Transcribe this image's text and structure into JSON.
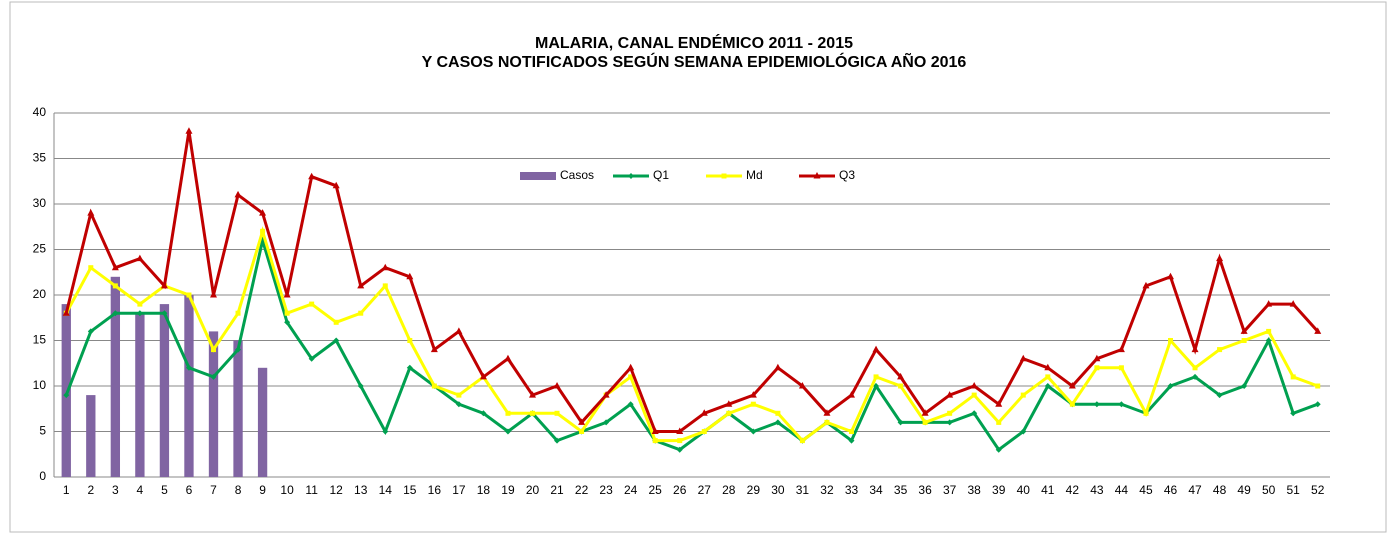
{
  "chart_data": {
    "type": "bar-line",
    "title": "MALARIA, CANAL ENDÉMICO 2011 - 2015",
    "subtitle": "Y CASOS NOTIFICADOS SEGÚN SEMANA EPIDEMIOLÓGICA AÑO 2016",
    "categories": [
      1,
      2,
      3,
      4,
      5,
      6,
      7,
      8,
      9,
      10,
      11,
      12,
      13,
      14,
      15,
      16,
      17,
      18,
      19,
      20,
      21,
      22,
      23,
      24,
      25,
      26,
      27,
      28,
      29,
      30,
      31,
      32,
      33,
      34,
      35,
      36,
      37,
      38,
      39,
      40,
      41,
      42,
      43,
      44,
      45,
      46,
      47,
      48,
      49,
      50,
      51,
      52
    ],
    "series": [
      {
        "name": "Casos",
        "type": "bar",
        "color": "#8064a2",
        "values": [
          19,
          9,
          22,
          18,
          19,
          20,
          16,
          15,
          12,
          null,
          null,
          null,
          null,
          null,
          null,
          null,
          null,
          null,
          null,
          null,
          null,
          null,
          null,
          null,
          null,
          null,
          null,
          null,
          null,
          null,
          null,
          null,
          null,
          null,
          null,
          null,
          null,
          null,
          null,
          null,
          null,
          null,
          null,
          null,
          null,
          null,
          null,
          null,
          null,
          null,
          null,
          null
        ]
      },
      {
        "name": "Q1",
        "type": "line",
        "marker": "diamond",
        "color": "#00a050",
        "values": [
          9,
          16,
          18,
          18,
          18,
          12,
          11,
          14,
          26,
          17,
          13,
          15,
          10,
          5,
          12,
          10,
          8,
          7,
          5,
          7,
          4,
          5,
          6,
          8,
          4,
          3,
          5,
          7,
          5,
          6,
          4,
          6,
          4,
          10,
          6,
          6,
          6,
          7,
          3,
          5,
          10,
          8,
          8,
          8,
          7,
          10,
          11,
          9,
          10,
          15,
          7,
          8
        ]
      },
      {
        "name": "Md",
        "type": "line",
        "marker": "square",
        "color": "#ffff00",
        "values": [
          18,
          23,
          21,
          19,
          21,
          20,
          14,
          18,
          27,
          18,
          19,
          17,
          18,
          21,
          15,
          10,
          9,
          11,
          7,
          7,
          7,
          5,
          9,
          11,
          4,
          4,
          5,
          7,
          8,
          7,
          4,
          6,
          5,
          11,
          10,
          6,
          7,
          9,
          6,
          9,
          11,
          8,
          12,
          12,
          7,
          15,
          12,
          14,
          15,
          16,
          11,
          10
        ]
      },
      {
        "name": "Q3",
        "type": "line",
        "marker": "triangle",
        "color": "#c00000",
        "values": [
          18,
          29,
          23,
          24,
          21,
          38,
          20,
          31,
          29,
          20,
          33,
          32,
          21,
          23,
          22,
          14,
          16,
          11,
          13,
          9,
          10,
          6,
          9,
          12,
          5,
          5,
          7,
          8,
          9,
          12,
          10,
          7,
          9,
          14,
          11,
          7,
          9,
          10,
          8,
          13,
          12,
          10,
          13,
          14,
          21,
          22,
          14,
          24,
          16,
          19,
          19,
          16
        ]
      }
    ],
    "ylim": [
      0,
      40
    ],
    "yticks": [
      0,
      5,
      10,
      15,
      20,
      25,
      30,
      35,
      40
    ],
    "grid": true
  }
}
